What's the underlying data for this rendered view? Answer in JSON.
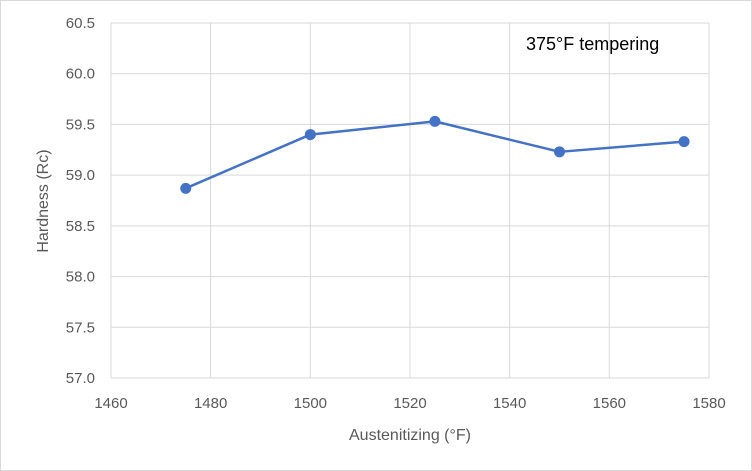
{
  "chart_data": {
    "type": "line",
    "title": "",
    "xlabel": "Austenitizing (°F)",
    "ylabel": "Hardness (Rc)",
    "xlim": [
      1460,
      1580
    ],
    "ylim": [
      57.0,
      60.5
    ],
    "x_ticks": [
      "1460",
      "1480",
      "1500",
      "1520",
      "1540",
      "1560",
      "1580"
    ],
    "y_ticks": [
      "57.0",
      "57.5",
      "58.0",
      "58.5",
      "59.0",
      "59.5",
      "60.0",
      "60.5"
    ],
    "grid": true,
    "legend": "none",
    "annotation": "375°F tempering",
    "series": [
      {
        "x": [
          1475,
          1500,
          1525,
          1550,
          1575
        ],
        "y": [
          58.87,
          59.4,
          59.53,
          59.23,
          59.33
        ],
        "color": "#4472c4",
        "marker": "circle"
      }
    ]
  }
}
